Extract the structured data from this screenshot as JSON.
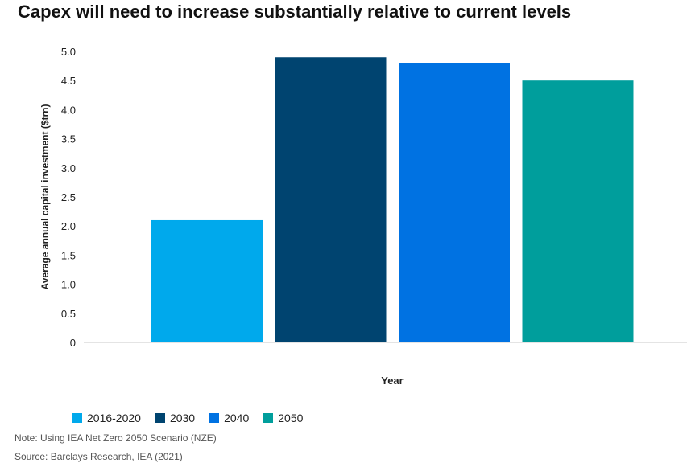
{
  "title": "Capex will need to increase substantially relative to current levels",
  "chart_data": {
    "type": "bar",
    "title": "Capex will need to increase substantially relative to current levels",
    "xlabel": "Year",
    "ylabel": "Average annual capital investment ($trn)",
    "ylim": [
      0,
      5.0
    ],
    "yticks": [
      "0",
      "0.5",
      "1.0",
      "1.5",
      "2.0",
      "2.5",
      "3.0",
      "3.5",
      "4.0",
      "4.5",
      "5.0"
    ],
    "categories": [
      "2016-2020",
      "2030",
      "2040",
      "2050"
    ],
    "values": [
      2.1,
      4.9,
      4.8,
      4.5
    ],
    "colors": [
      "#00a9ec",
      "#004470",
      "#0072e2",
      "#009e9c"
    ],
    "legend_position": "bottom-left"
  },
  "legend": [
    {
      "label": "2016-2020",
      "color": "#00a9ec"
    },
    {
      "label": "2030",
      "color": "#004470"
    },
    {
      "label": "2040",
      "color": "#0072e2"
    },
    {
      "label": "2050",
      "color": "#009e9c"
    }
  ],
  "note": "Note: Using IEA Net Zero 2050 Scenario (NZE)",
  "source": "Source: Barclays Research, IEA (2021)"
}
